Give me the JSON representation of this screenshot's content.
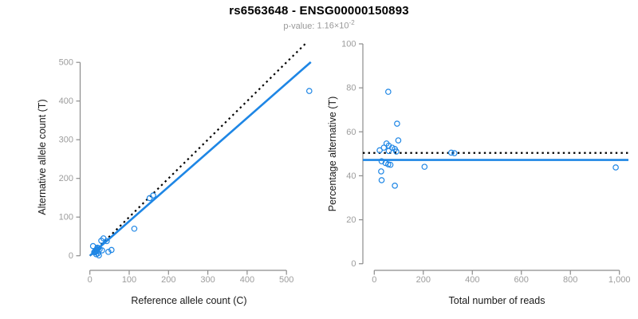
{
  "header": {
    "title": "rs6563648 - ENSG00000150893",
    "subtitle_label": "p-value:",
    "subtitle_mantissa": "1.16×10",
    "subtitle_exponent": "-2"
  },
  "colors": {
    "accent_blue": "#1E86E5",
    "dotted_line": "#000000",
    "axis": "#8c8c8c",
    "tick_label": "#9c9c9c",
    "axis_label": "#1a1a1a",
    "subtitle": "#999999"
  },
  "chart_data": [
    {
      "type": "scatter",
      "panel": "left",
      "xlabel": "Reference allele count (C)",
      "ylabel": "Alternative allele count (T)",
      "xlim": [
        0,
        562
      ],
      "ylim": [
        0,
        548
      ],
      "grid": false,
      "legend": null,
      "point_color": "#1E86E5",
      "xticks": {
        "values": [
          0,
          100,
          200,
          300,
          400,
          500
        ],
        "labels": [
          "0",
          "100",
          "200",
          "300",
          "400",
          "500"
        ]
      },
      "yticks": {
        "values": [
          0,
          100,
          200,
          300,
          400,
          500
        ],
        "labels": [
          "0",
          "100",
          "200",
          "300",
          "400",
          "500"
        ]
      },
      "lines": [
        {
          "kind": "identity-expected-50pct",
          "style": "dotted",
          "color": "#000000",
          "slope": 1,
          "intercept": 0,
          "x_start": 0,
          "x_end": 548
        },
        {
          "kind": "regression-fit",
          "style": "solid",
          "color": "#1E86E5",
          "slope": 0.891,
          "intercept": 0,
          "x_start": 0,
          "x_end": 562
        }
      ],
      "points": [
        [
          558,
          426
        ],
        [
          161,
          156
        ],
        [
          152,
          149
        ],
        [
          113,
          70
        ],
        [
          34.5,
          45
        ],
        [
          29,
          39
        ],
        [
          43,
          38
        ],
        [
          8,
          25
        ],
        [
          19,
          21
        ],
        [
          25,
          17
        ],
        [
          31,
          14
        ],
        [
          47,
          10
        ],
        [
          55,
          15
        ],
        [
          16,
          4
        ],
        [
          23,
          1
        ],
        [
          20,
          6
        ],
        [
          13,
          12
        ],
        [
          16,
          14
        ],
        [
          19,
          17
        ],
        [
          15,
          10
        ],
        [
          11,
          9
        ],
        [
          22,
          20
        ]
      ]
    },
    {
      "type": "scatter",
      "panel": "right",
      "xlabel": "Total number of reads",
      "ylabel": "Percentage alternative (T)",
      "xlim": [
        0,
        1036
      ],
      "ylim": [
        0,
        100
      ],
      "grid": false,
      "legend": null,
      "point_color": "#1E86E5",
      "xticks": {
        "values": [
          0,
          200,
          400,
          600,
          800,
          1000
        ],
        "labels": [
          "0",
          "200",
          "400",
          "600",
          "800",
          "1,000"
        ]
      },
      "yticks": {
        "values": [
          0,
          20,
          40,
          60,
          80,
          100
        ],
        "labels": [
          "0",
          "20",
          "40",
          "60",
          "80",
          "100"
        ]
      },
      "lines": [
        {
          "kind": "expected-50pct",
          "style": "dotted",
          "color": "#000000",
          "hline": 50.4
        },
        {
          "kind": "overall-fit",
          "style": "solid",
          "color": "#1E86E5",
          "hline": 47.2
        }
      ],
      "points": [
        [
          57,
          78.2
        ],
        [
          93,
          63.7
        ],
        [
          98,
          56.1
        ],
        [
          50,
          54.7
        ],
        [
          59,
          53.7
        ],
        [
          39,
          52.8
        ],
        [
          73,
          52.8
        ],
        [
          84,
          52.2
        ],
        [
          22,
          51.6
        ],
        [
          59,
          51.3
        ],
        [
          90,
          51.0
        ],
        [
          314,
          50.5
        ],
        [
          327,
          50.3
        ],
        [
          30,
          46.6
        ],
        [
          46,
          45.8
        ],
        [
          57,
          45.2
        ],
        [
          66,
          45.0
        ],
        [
          205,
          44.1
        ],
        [
          28,
          42.0
        ],
        [
          30,
          38.0
        ],
        [
          84,
          35.5
        ],
        [
          985,
          43.8
        ]
      ]
    }
  ]
}
